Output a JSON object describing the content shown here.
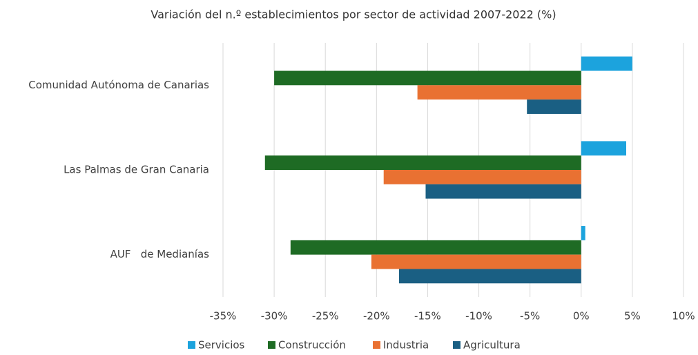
{
  "chart_data": {
    "type": "hbar",
    "title": "Variación del n.º establecimientos por sector de actividad 2007-2022 (%)",
    "categories": [
      "Comunidad Autónoma de Canarias",
      "Las Palmas de Gran Canaria",
      "AUF   de Medianías"
    ],
    "series": [
      {
        "name": "Servicios",
        "color": "#1ca3dd",
        "values": [
          5.0,
          4.4,
          0.4
        ]
      },
      {
        "name": "Construcción",
        "color": "#1e6b24",
        "values": [
          -30.0,
          -30.9,
          -28.4
        ]
      },
      {
        "name": "Industria",
        "color": "#e97132",
        "values": [
          -16.0,
          -19.3,
          -20.5
        ]
      },
      {
        "name": "Agricultura",
        "color": "#1a5f83",
        "values": [
          -5.3,
          -15.2,
          -17.8
        ]
      }
    ],
    "xlim": [
      -35,
      10
    ],
    "xticks": [
      {
        "value": -35,
        "label": "-35%"
      },
      {
        "value": -30,
        "label": "-30%"
      },
      {
        "value": -25,
        "label": "-25%"
      },
      {
        "value": -20,
        "label": "-20%"
      },
      {
        "value": -15,
        "label": "-15%"
      },
      {
        "value": -10,
        "label": "-10%"
      },
      {
        "value": -5,
        "label": "-5%"
      },
      {
        "value": 0,
        "label": "0%"
      },
      {
        "value": 5,
        "label": "5%"
      },
      {
        "value": 10,
        "label": "10%"
      }
    ],
    "grid": true,
    "legend": "bottom"
  }
}
